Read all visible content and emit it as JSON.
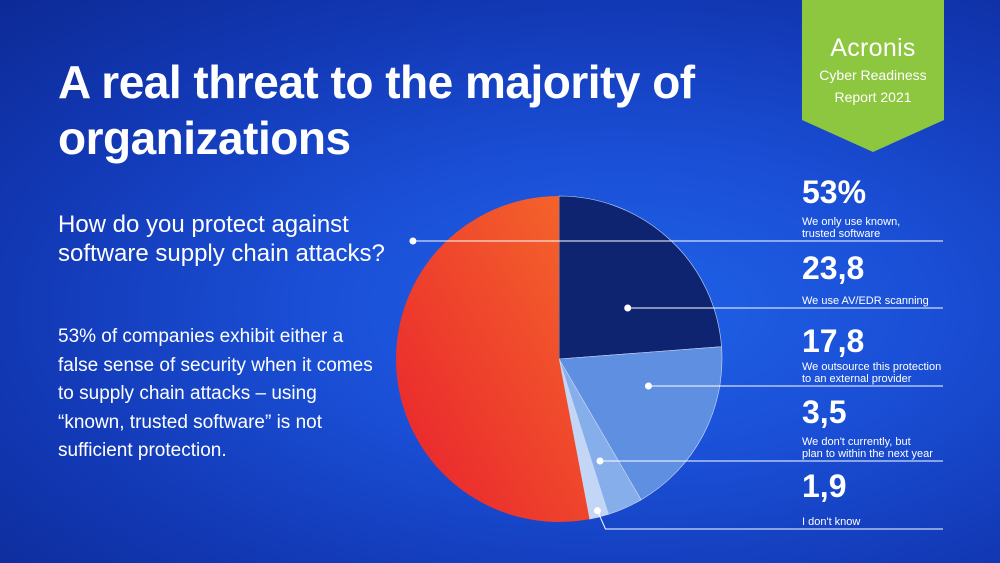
{
  "title": "A real threat to the majority of organizations",
  "question": "How do you protect against software supply chain attacks?",
  "body_text": "53% of companies exhibit either a false sense of security when it comes to supply chain attacks – using “known, trusted software” is not sufficient protection.",
  "badge": {
    "brand": "Acronis",
    "report_line1": "Cyber Readiness",
    "report_line2": "Report 2021",
    "color": "#8dc63f"
  },
  "chart_data": {
    "type": "pie",
    "title": "",
    "slices": [
      {
        "value": 53,
        "label": "53%",
        "description": [
          "We only use known,",
          "trusted software"
        ],
        "color": "#f04a2a"
      },
      {
        "value": 23.8,
        "label": "23,8",
        "description": [
          "We use AV/EDR scanning"
        ],
        "color": "#0e2470"
      },
      {
        "value": 17.8,
        "label": "17,8",
        "description": [
          "We outsource this protection",
          "to an external provider"
        ],
        "color": "#5e8fe0"
      },
      {
        "value": 3.5,
        "label": "3,5",
        "description": [
          "We don't currently, but",
          "plan to within the next year"
        ],
        "color": "#86aeeb"
      },
      {
        "value": 1.9,
        "label": "1,9",
        "description": [
          "I don't know"
        ],
        "color": "#c3d6f6"
      }
    ]
  }
}
